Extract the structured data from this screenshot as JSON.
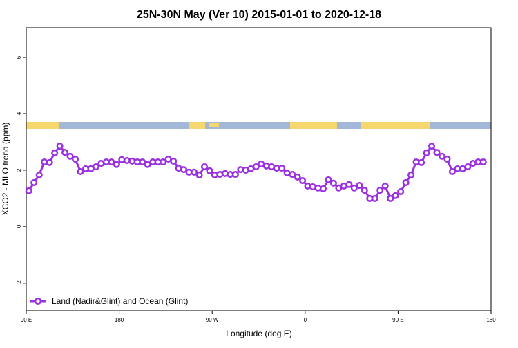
{
  "chart_data": {
    "type": "line",
    "title": "25N-30N May (Ver 10)   2015-01-01 to 2020-12-18",
    "x_label": "Longitude (deg E)",
    "y_label": "XCO2 - MLO trend (ppm)",
    "xlim": [
      90,
      540
    ],
    "ylim": [
      -2.98,
      7.05
    ],
    "xticks": [
      {
        "value": 90,
        "label": "90 E"
      },
      180,
      {
        "value": 270,
        "label": "90 W"
      },
      {
        "value": 360,
        "label": "0"
      },
      {
        "value": 450,
        "label": "90 E"
      },
      {
        "value": 540,
        "label": "180"
      }
    ],
    "yticks": [
      -2,
      0,
      2,
      4,
      6
    ],
    "grid": false,
    "legend": "bottom-left",
    "x": [
      92.5,
      97.5,
      102.5,
      107.5,
      112.5,
      117.5,
      122.5,
      127.5,
      132.5,
      137.5,
      142.5,
      147.5,
      152.5,
      157.5,
      162.5,
      167.5,
      172.5,
      177.5,
      182.5,
      187.5,
      192.5,
      197.5,
      202.5,
      207.5,
      212.5,
      217.5,
      222.5,
      227.5,
      232.5,
      237.5,
      242.5,
      247.5,
      252.5,
      257.5,
      262.5,
      267.5,
      272.5,
      277.5,
      282.5,
      287.5,
      292.5,
      297.5,
      302.5,
      307.5,
      312.5,
      317.5,
      322.5,
      327.5,
      332.5,
      337.5,
      342.5,
      347.5,
      352.5,
      357.5,
      362.5,
      367.5,
      372.5,
      377.5,
      382.5,
      387.5,
      392.5,
      397.5,
      402.5,
      407.5,
      412.5,
      417.5,
      422.5,
      427.5,
      432.5,
      437.5,
      442.5,
      447.5,
      452.5,
      457.5,
      462.5,
      467.5,
      472.5,
      477.5,
      482.5,
      487.5,
      492.5,
      497.5,
      502.5,
      507.5,
      512.5,
      517.5,
      522.5,
      527.5,
      532.5
    ],
    "series": [
      {
        "name": "Land (Nadir&Glint) and Ocean (Glint)",
        "color": "#9b30e0",
        "values": [
          1.27,
          1.56,
          1.83,
          2.29,
          2.27,
          2.61,
          2.85,
          2.63,
          2.49,
          2.39,
          1.95,
          2.05,
          2.05,
          2.12,
          2.24,
          2.29,
          2.29,
          2.2,
          2.37,
          2.34,
          2.32,
          2.29,
          2.29,
          2.2,
          2.29,
          2.29,
          2.29,
          2.39,
          2.32,
          2.07,
          2.02,
          1.93,
          1.93,
          1.83,
          2.12,
          1.98,
          1.83,
          1.85,
          1.88,
          1.85,
          1.85,
          2.02,
          2.0,
          2.05,
          2.12,
          2.22,
          2.15,
          2.12,
          2.07,
          2.07,
          1.9,
          1.85,
          1.76,
          1.63,
          1.44,
          1.41,
          1.37,
          1.34,
          1.66,
          1.54,
          1.37,
          1.44,
          1.49,
          1.37,
          1.46,
          1.29,
          1.0,
          1.0,
          1.29,
          1.44,
          1.0,
          1.1,
          1.24,
          1.56,
          1.83,
          2.29,
          2.27,
          2.61,
          2.85,
          2.63,
          2.49,
          2.39,
          1.95,
          2.05,
          2.05,
          2.12,
          2.24,
          2.29,
          2.29
        ]
      }
    ]
  }
}
